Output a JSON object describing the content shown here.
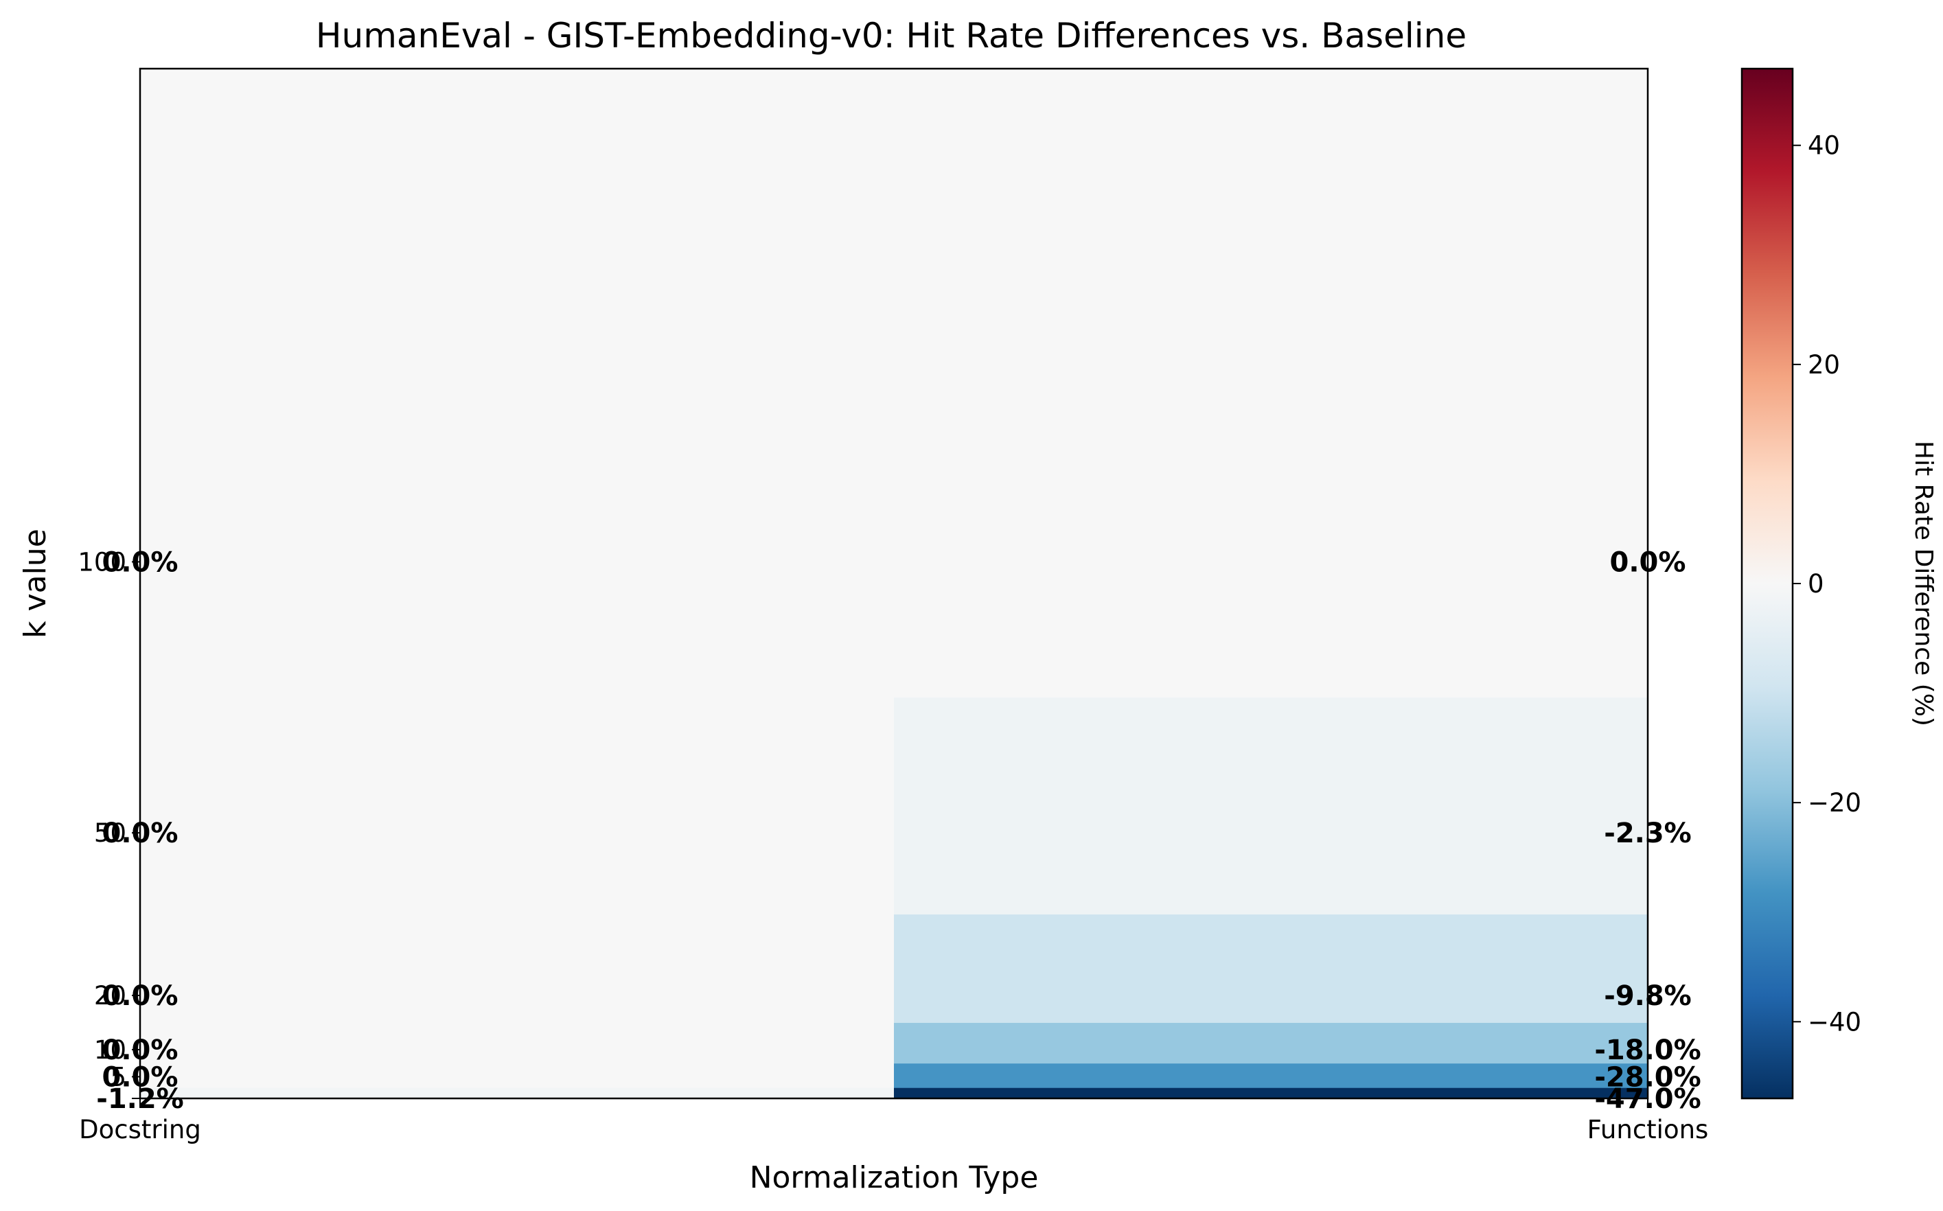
{
  "chart_data": {
    "type": "heatmap",
    "title": "HumanEval - GIST-Embedding-v0: Hit Rate Differences vs. Baseline",
    "xlabel": "Normalization Type",
    "ylabel": "k value",
    "x": [
      "Docstring",
      "Functions"
    ],
    "y_ticks": [
      1,
      5,
      10,
      20,
      50,
      100
    ],
    "y_tick_labels": [
      "1",
      "5",
      "10",
      "20",
      "50",
      "100"
    ],
    "values_by_x": {
      "Docstring": [
        -1.2,
        0.0,
        0.0,
        0.0,
        0.0,
        0.0
      ],
      "Functions": [
        -47.0,
        -28.0,
        -18.0,
        -9.8,
        -2.3,
        0.0
      ]
    },
    "cell_labels_by_x": {
      "Docstring": [
        "-1.2%",
        "0.0%",
        "0.0%",
        "0.0%",
        "0.0%",
        "0.0%"
      ],
      "Functions": [
        "-47.0%",
        "-28.0%",
        "-18.0%",
        "-9.8%",
        "-2.3%",
        "0.0%"
      ]
    },
    "colorbar": {
      "label": "Hit Rate Difference (%)",
      "range": [
        -47,
        47
      ],
      "ticks": [
        -40,
        -20,
        0,
        20,
        40
      ],
      "tick_labels": [
        "−40",
        "−20",
        "0",
        "20",
        "40"
      ],
      "colormap": "RdBu_r"
    },
    "colors": {
      "neg_strong": "#053061",
      "neutral": "#f7f7f7",
      "pos_strong": "#67001f"
    }
  }
}
